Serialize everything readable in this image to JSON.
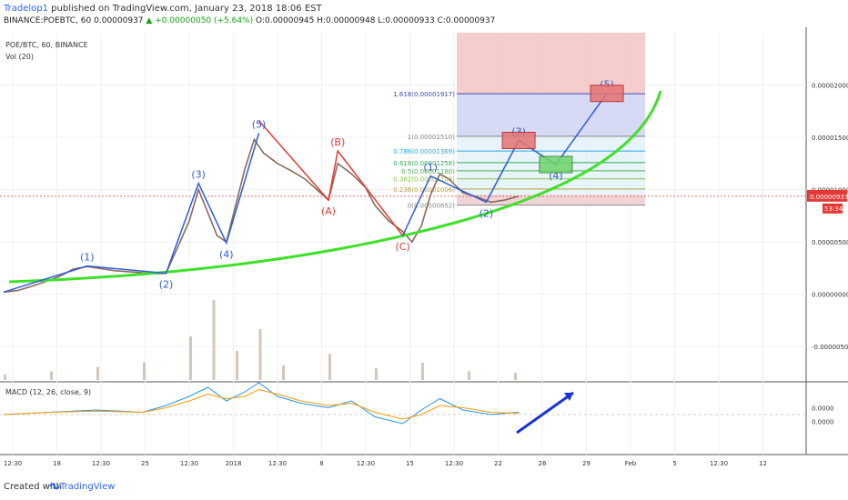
{
  "header": {
    "author": "Tradelop1",
    "published": "published on TradingView.com, January 23, 2018 18:06 EST",
    "symbol_line": "BINANCE:POEBTC, 60",
    "price": "0.00000937",
    "change": "▲ +0.00000050 (+5.64%)",
    "ohlc": "O:0.00000945 H:0.00000948 L:0.00000933 C:0.00000937"
  },
  "legend": {
    "symbol": "POE/BTC, 60, BINANCE",
    "vol": "Vol (20)",
    "macd": "MACD (12, 26, close, 9)"
  },
  "footer": {
    "created": "Created with",
    "brand": "TradingView"
  },
  "colors": {
    "candle": "#8a6a5a",
    "wave_blue": "#2f5bd9",
    "wave_red": "#e53935",
    "curve": "#3fe02a",
    "price_line": "#e53935",
    "macd": "#2196f3",
    "signal": "#ff9800",
    "hist_neg": "#e91e63",
    "arrow": "#1a33d6"
  },
  "chart_data": {
    "type": "line",
    "price_axis": {
      "ticks": [
        2e-05,
        1.5e-05,
        1e-05,
        5e-06,
        0,
        -5e-06
      ],
      "labels": [
        "0.00002000",
        "0.00001500",
        "0.00001000",
        "0.00000500",
        "0.00000000",
        "-0.00000500"
      ],
      "ylim": [
        -8.2e-06,
        2.5e-05
      ]
    },
    "current_price": {
      "value": 9.37e-06,
      "label": "0.00000937",
      "countdown": "53:34"
    },
    "macd_axis": {
      "ticks": [
        0.0,
        0.0
      ],
      "labels": [
        "0.0000",
        "0.0000"
      ]
    },
    "x_ticks": [
      "12:30",
      "18",
      "12:30",
      "25",
      "12:30",
      "2018",
      "12:30",
      "8",
      "12:30",
      "15",
      "12:30",
      "22",
      "26",
      "29",
      "Feb",
      "5",
      "12:30",
      "12"
    ],
    "price_series": [
      [
        0,
        2e-07
      ],
      [
        6,
        3.5e-07
      ],
      [
        12,
        7.5e-07
      ],
      [
        18,
        1.2e-06
      ],
      [
        24,
        1.7e-06
      ],
      [
        30,
        2.4e-06
      ],
      [
        36,
        2.65e-06
      ],
      [
        42,
        2.45e-06
      ],
      [
        48,
        2.25e-06
      ],
      [
        54,
        2.15e-06
      ],
      [
        60,
        2.05e-06
      ],
      [
        66,
        1.95e-06
      ],
      [
        70,
        2e-06
      ],
      [
        72,
        3e-06
      ],
      [
        75,
        4.5e-06
      ],
      [
        80,
        7e-06
      ],
      [
        84,
        1e-05
      ],
      [
        88,
        7.8e-06
      ],
      [
        92,
        5.6e-06
      ],
      [
        96,
        5e-06
      ],
      [
        100,
        8.5e-06
      ],
      [
        104,
        1.2e-05
      ],
      [
        108,
        1.48e-05
      ],
      [
        112,
        1.35e-05
      ],
      [
        118,
        1.25e-05
      ],
      [
        124,
        1.18e-05
      ],
      [
        130,
        1.1e-05
      ],
      [
        136,
        9.8e-06
      ],
      [
        140,
        9e-06
      ],
      [
        144,
        1.25e-05
      ],
      [
        150,
        1.15e-05
      ],
      [
        156,
        1.02e-05
      ],
      [
        160,
        8.5e-06
      ],
      [
        166,
        7e-06
      ],
      [
        172,
        6e-06
      ],
      [
        176,
        5e-06
      ],
      [
        180,
        6.5e-06
      ],
      [
        184,
        9.5e-06
      ],
      [
        188,
        1.15e-05
      ],
      [
        192,
        1.1e-05
      ],
      [
        198,
        9.7e-06
      ],
      [
        204,
        9.3e-06
      ],
      [
        210,
        8.8e-06
      ],
      [
        216,
        9e-06
      ],
      [
        222,
        9.37e-06
      ]
    ],
    "waves": {
      "wave1": {
        "labels": [
          "(1)",
          "(2)",
          "(3)",
          "(4)",
          "(5)"
        ],
        "points": [
          [
            0,
            2e-07
          ],
          [
            36,
            2.7e-06
          ],
          [
            70,
            2e-06
          ],
          [
            84,
            1.06e-05
          ],
          [
            96,
            4.9e-06
          ],
          [
            110,
            1.54e-05
          ]
        ]
      },
      "abc": {
        "labels": [
          "(A)",
          "(B)",
          "(C)"
        ],
        "points": [
          [
            110,
            1.66e-05
          ],
          [
            140,
            9e-06
          ],
          [
            144,
            1.37e-05
          ],
          [
            172,
            5.6e-06
          ]
        ]
      },
      "wave2": {
        "labels": [
          "(1)",
          "(2)",
          "(3)",
          "(4)",
          "(5)"
        ],
        "points": [
          [
            172,
            5.6e-06
          ],
          [
            184,
            1.13e-05
          ],
          [
            208,
            8.8e-06
          ],
          [
            222,
            1.47e-05
          ],
          [
            238,
            1.24e-05
          ],
          [
            260,
            1.92e-05
          ]
        ]
      }
    },
    "fibonacci": [
      {
        "label": "1.618(0.00001917)",
        "value": 1.917e-05,
        "color": "#3949ab"
      },
      {
        "label": "1(0.00001510)",
        "value": 1.51e-05,
        "color": "#888888"
      },
      {
        "label": "0.786(0.00001369)",
        "value": 1.369e-05,
        "color": "#29a8e0"
      },
      {
        "label": "0.618(0.00001258)",
        "value": 1.258e-05,
        "color": "#2eaa55"
      },
      {
        "label": "0.5(0.00001180)",
        "value": 1.18e-05,
        "color": "#4caf50"
      },
      {
        "label": "0.382(0.00001103)",
        "value": 1.103e-05,
        "color": "#8bc34a"
      },
      {
        "label": "0.236(0.00001006)",
        "value": 1.006e-05,
        "color": "#c0a03a"
      },
      {
        "label": "0(0.00000852)",
        "value": 8.52e-06,
        "color": "#888888"
      }
    ],
    "target_boxes": [
      {
        "wave": "(3)",
        "center": [
          222,
          1.47e-05
        ]
      },
      {
        "wave": "(4)",
        "center": [
          238,
          1.24e-05
        ]
      },
      {
        "wave": "(5)",
        "center": [
          260,
          1.92e-05
        ]
      }
    ],
    "volume_series": [
      [
        0,
        4
      ],
      [
        20,
        6
      ],
      [
        40,
        9
      ],
      [
        60,
        12
      ],
      [
        80,
        30
      ],
      [
        90,
        55
      ],
      [
        100,
        20
      ],
      [
        110,
        35
      ],
      [
        120,
        10
      ],
      [
        140,
        18
      ],
      [
        160,
        8
      ],
      [
        180,
        12
      ],
      [
        200,
        6
      ],
      [
        220,
        5
      ]
    ],
    "macd_series": {
      "macd": [
        [
          0,
          0
        ],
        [
          20,
          1
        ],
        [
          40,
          2
        ],
        [
          60,
          1
        ],
        [
          70,
          4
        ],
        [
          80,
          8
        ],
        [
          88,
          12
        ],
        [
          96,
          6
        ],
        [
          104,
          10
        ],
        [
          110,
          14
        ],
        [
          118,
          8
        ],
        [
          128,
          5
        ],
        [
          140,
          3
        ],
        [
          150,
          6
        ],
        [
          160,
          -1
        ],
        [
          172,
          -4
        ],
        [
          180,
          2
        ],
        [
          188,
          7
        ],
        [
          198,
          2
        ],
        [
          210,
          0
        ],
        [
          222,
          1
        ]
      ],
      "signal": [
        [
          0,
          0
        ],
        [
          20,
          1
        ],
        [
          40,
          1.5
        ],
        [
          60,
          1
        ],
        [
          70,
          3
        ],
        [
          80,
          6
        ],
        [
          88,
          9
        ],
        [
          96,
          7
        ],
        [
          104,
          8
        ],
        [
          110,
          11
        ],
        [
          118,
          9
        ],
        [
          128,
          6
        ],
        [
          140,
          4
        ],
        [
          150,
          5
        ],
        [
          160,
          1
        ],
        [
          172,
          -2
        ],
        [
          180,
          0
        ],
        [
          188,
          4
        ],
        [
          198,
          3
        ],
        [
          210,
          1
        ],
        [
          222,
          0.5
        ]
      ]
    }
  }
}
